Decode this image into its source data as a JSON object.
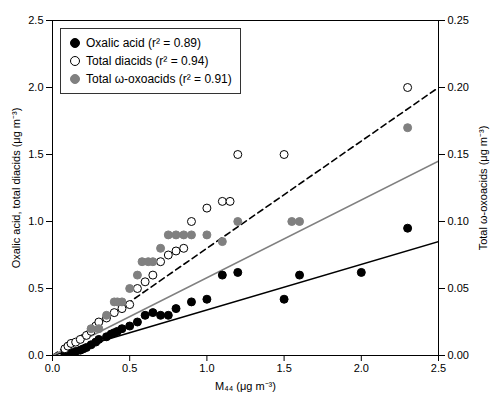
{
  "chart_data": {
    "type": "scatter",
    "xlabel": "M₄₄ (μg m⁻³)",
    "ylabel": "Oxalic acid, total diacids (μg m⁻³)",
    "y2label": "Total ω-oxoacids (μg m⁻³)",
    "xlim": [
      0.0,
      2.5
    ],
    "ylim": [
      0.0,
      2.5
    ],
    "y2lim": [
      0.0,
      0.25
    ],
    "xticks": [
      {
        "value": 0.0,
        "label": "0.0"
      },
      0.5,
      {
        "value": 1.0,
        "label": "1.0"
      },
      1.5,
      {
        "value": 2.0,
        "label": "2.0"
      },
      2.5
    ],
    "yticks": [
      {
        "value": 0.0,
        "label": "0.0"
      },
      0.5,
      {
        "value": 1.0,
        "label": "1.0"
      },
      1.5,
      {
        "value": 2.0,
        "label": "2.0"
      },
      2.5
    ],
    "y2ticks": [
      {
        "value": 0.0,
        "label": "0.00"
      },
      {
        "value": 0.05,
        "label": "0.05"
      },
      {
        "value": 0.1,
        "label": "0.10"
      },
      {
        "value": 0.15,
        "label": "0.15"
      },
      {
        "value": 0.2,
        "label": "0.20"
      },
      {
        "value": 0.25,
        "label": "0.25"
      }
    ],
    "legend": "upper left",
    "grid": false,
    "series": [
      {
        "name": "Oxalic acid (r² = 0.89)",
        "type": "scatter",
        "marker": "circle",
        "color": "black",
        "x": [
          0.08,
          0.1,
          0.12,
          0.15,
          0.18,
          0.2,
          0.22,
          0.25,
          0.28,
          0.3,
          0.35,
          0.38,
          0.4,
          0.42,
          0.45,
          0.5,
          0.55,
          0.6,
          0.65,
          0.7,
          0.75,
          0.8,
          0.9,
          1.0,
          1.1,
          1.2,
          1.5,
          1.6,
          2.0,
          2.3
        ],
        "values": [
          0.01,
          0.02,
          0.02,
          0.03,
          0.04,
          0.05,
          0.06,
          0.08,
          0.1,
          0.12,
          0.14,
          0.16,
          0.17,
          0.18,
          0.2,
          0.22,
          0.25,
          0.3,
          0.32,
          0.3,
          0.3,
          0.35,
          0.4,
          0.42,
          0.6,
          0.62,
          0.42,
          0.6,
          0.62,
          0.95
        ]
      },
      {
        "name": "Total diacids (r² = 0.94)",
        "type": "scatter",
        "marker": "open_circle",
        "color": "black",
        "x": [
          0.08,
          0.1,
          0.12,
          0.15,
          0.18,
          0.22,
          0.25,
          0.28,
          0.3,
          0.35,
          0.4,
          0.45,
          0.5,
          0.55,
          0.6,
          0.65,
          0.7,
          0.75,
          0.8,
          0.85,
          0.9,
          1.0,
          1.1,
          1.15,
          1.2,
          1.5,
          2.3
        ],
        "values": [
          0.05,
          0.07,
          0.09,
          0.1,
          0.12,
          0.15,
          0.18,
          0.22,
          0.25,
          0.28,
          0.32,
          0.35,
          0.38,
          0.5,
          0.55,
          0.6,
          0.7,
          0.75,
          0.78,
          0.8,
          1.0,
          1.1,
          1.15,
          1.15,
          1.5,
          1.5,
          2.0
        ]
      },
      {
        "name": "Total ω-oxoacids (r² = 0.91)",
        "type": "scatter",
        "marker": "circle",
        "color": "gray",
        "axis": "y2",
        "x": [
          0.25,
          0.3,
          0.35,
          0.4,
          0.42,
          0.45,
          0.5,
          0.55,
          0.58,
          0.62,
          0.65,
          0.7,
          0.75,
          0.8,
          0.85,
          0.9,
          1.0,
          1.1,
          1.2,
          1.55,
          1.6,
          2.3
        ],
        "values": [
          0.02,
          0.02,
          0.03,
          0.04,
          0.04,
          0.04,
          0.05,
          0.06,
          0.07,
          0.07,
          0.07,
          0.08,
          0.09,
          0.09,
          0.09,
          0.09,
          0.09,
          0.085,
          0.1,
          0.1,
          0.1,
          0.17
        ]
      },
      {
        "type": "line",
        "line_style": "solid",
        "color": "black",
        "x": [
          0.0,
          2.5
        ],
        "values": [
          0.0,
          0.85
        ]
      },
      {
        "type": "line",
        "line_style": "dashed",
        "color": "black",
        "x": [
          0.0,
          2.5
        ],
        "values": [
          0.0,
          2.0
        ]
      },
      {
        "type": "line",
        "line_style": "solid",
        "color": "gray",
        "x": [
          0.0,
          2.5
        ],
        "values": [
          0.0,
          1.45
        ]
      }
    ]
  }
}
